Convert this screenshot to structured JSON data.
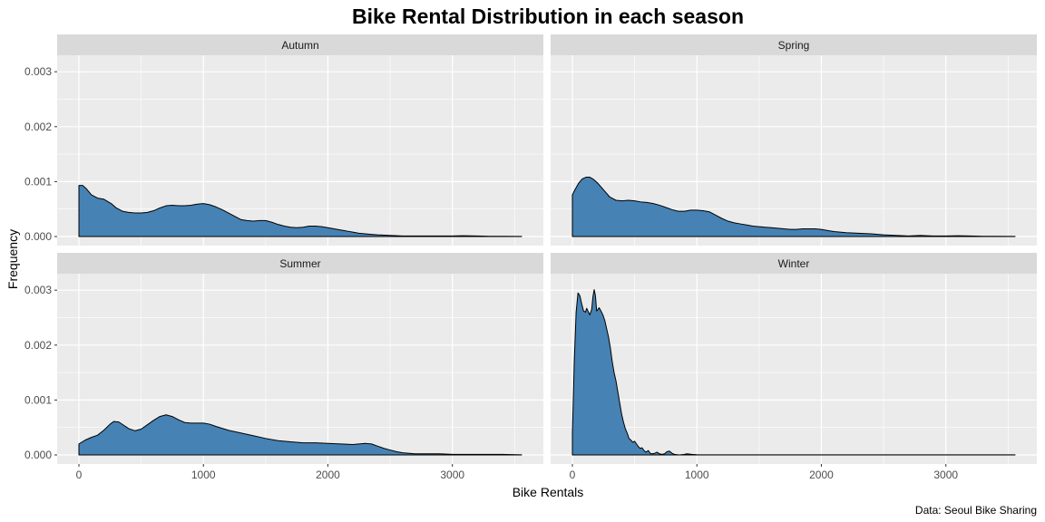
{
  "chart_data": {
    "type": "area",
    "title": "Bike Rental Distribution in each season",
    "xlabel": "Bike Rentals",
    "ylabel": "Frequency",
    "caption": "Data: Seoul Bike Sharing",
    "xlim": [
      0,
      3556
    ],
    "ylim": [
      0,
      0.0033
    ],
    "x_ticks": [
      0,
      1000,
      2000,
      3000
    ],
    "x_tick_labels": [
      "0",
      "1000",
      "2000",
      "3000"
    ],
    "y_ticks": [
      0,
      0.001,
      0.002,
      0.003
    ],
    "y_tick_labels": [
      "0.000",
      "0.001",
      "0.002",
      "0.003"
    ],
    "grid": true,
    "fill_color": "#4682B4",
    "panel_background": "#EBEBEB",
    "strip_background": "#D9D9D9",
    "series": [
      {
        "name": "Autumn",
        "points": [
          [
            0,
            0.00093
          ],
          [
            30,
            0.00093
          ],
          [
            60,
            0.00087
          ],
          [
            100,
            0.00076
          ],
          [
            150,
            0.0007
          ],
          [
            200,
            0.00068
          ],
          [
            260,
            0.0006
          ],
          [
            300,
            0.00052
          ],
          [
            350,
            0.00046
          ],
          [
            400,
            0.00044
          ],
          [
            450,
            0.00043
          ],
          [
            500,
            0.00043
          ],
          [
            550,
            0.00044
          ],
          [
            600,
            0.00047
          ],
          [
            650,
            0.00052
          ],
          [
            700,
            0.00056
          ],
          [
            750,
            0.00057
          ],
          [
            800,
            0.00056
          ],
          [
            850,
            0.00056
          ],
          [
            900,
            0.00057
          ],
          [
            950,
            0.00059
          ],
          [
            1000,
            0.0006
          ],
          [
            1050,
            0.00058
          ],
          [
            1100,
            0.00054
          ],
          [
            1150,
            0.00049
          ],
          [
            1200,
            0.00043
          ],
          [
            1250,
            0.00037
          ],
          [
            1300,
            0.00031
          ],
          [
            1350,
            0.00029
          ],
          [
            1400,
            0.00028
          ],
          [
            1450,
            0.00029
          ],
          [
            1500,
            0.00029
          ],
          [
            1550,
            0.00026
          ],
          [
            1600,
            0.00022
          ],
          [
            1650,
            0.00019
          ],
          [
            1700,
            0.00017
          ],
          [
            1750,
            0.00016
          ],
          [
            1800,
            0.00017
          ],
          [
            1850,
            0.00019
          ],
          [
            1900,
            0.00019
          ],
          [
            1950,
            0.00018
          ],
          [
            2000,
            0.00016
          ],
          [
            2050,
            0.00014
          ],
          [
            2100,
            0.00012
          ],
          [
            2150,
            0.0001
          ],
          [
            2200,
            8e-05
          ],
          [
            2250,
            6e-05
          ],
          [
            2300,
            5e-05
          ],
          [
            2350,
            4e-05
          ],
          [
            2400,
            3e-05
          ],
          [
            2500,
            2e-05
          ],
          [
            2600,
            1e-05
          ],
          [
            2700,
            1e-05
          ],
          [
            2800,
            1e-05
          ],
          [
            2900,
            1e-05
          ],
          [
            3000,
            1e-05
          ],
          [
            3100,
            1.5e-05
          ],
          [
            3200,
            1e-05
          ],
          [
            3300,
            5e-06
          ],
          [
            3400,
            5e-06
          ],
          [
            3556,
            2e-06
          ]
        ]
      },
      {
        "name": "Spring",
        "points": [
          [
            0,
            0.00076
          ],
          [
            20,
            0.00085
          ],
          [
            50,
            0.00097
          ],
          [
            80,
            0.00105
          ],
          [
            110,
            0.00108
          ],
          [
            140,
            0.00108
          ],
          [
            170,
            0.00104
          ],
          [
            200,
            0.00098
          ],
          [
            250,
            0.00085
          ],
          [
            300,
            0.00072
          ],
          [
            350,
            0.00066
          ],
          [
            400,
            0.00065
          ],
          [
            450,
            0.00066
          ],
          [
            500,
            0.00065
          ],
          [
            550,
            0.00063
          ],
          [
            600,
            0.00062
          ],
          [
            650,
            0.0006
          ],
          [
            700,
            0.00057
          ],
          [
            750,
            0.00053
          ],
          [
            800,
            0.00049
          ],
          [
            850,
            0.00046
          ],
          [
            900,
            0.00046
          ],
          [
            950,
            0.00048
          ],
          [
            1000,
            0.00048
          ],
          [
            1050,
            0.00047
          ],
          [
            1100,
            0.00045
          ],
          [
            1150,
            0.00039
          ],
          [
            1200,
            0.00033
          ],
          [
            1250,
            0.00028
          ],
          [
            1300,
            0.00025
          ],
          [
            1350,
            0.00023
          ],
          [
            1400,
            0.00021
          ],
          [
            1450,
            0.00019
          ],
          [
            1500,
            0.00018
          ],
          [
            1550,
            0.00017
          ],
          [
            1600,
            0.00016
          ],
          [
            1650,
            0.00015
          ],
          [
            1700,
            0.00014
          ],
          [
            1750,
            0.00013
          ],
          [
            1800,
            0.00013
          ],
          [
            1850,
            0.00014
          ],
          [
            1900,
            0.00014
          ],
          [
            1950,
            0.00014
          ],
          [
            2000,
            0.00013
          ],
          [
            2050,
            0.00011
          ],
          [
            2100,
            9e-05
          ],
          [
            2150,
            8e-05
          ],
          [
            2200,
            7e-05
          ],
          [
            2300,
            6e-05
          ],
          [
            2400,
            5e-05
          ],
          [
            2500,
            3e-05
          ],
          [
            2600,
            2e-05
          ],
          [
            2700,
            1e-05
          ],
          [
            2800,
            2e-05
          ],
          [
            2900,
            1e-05
          ],
          [
            3000,
            1e-05
          ],
          [
            3100,
            1.5e-05
          ],
          [
            3200,
            1e-05
          ],
          [
            3300,
            5e-06
          ],
          [
            3400,
            5e-06
          ],
          [
            3556,
            2e-06
          ]
        ]
      },
      {
        "name": "Summer",
        "points": [
          [
            0,
            0.0002
          ],
          [
            50,
            0.00027
          ],
          [
            100,
            0.00032
          ],
          [
            150,
            0.00036
          ],
          [
            200,
            0.00045
          ],
          [
            250,
            0.00056
          ],
          [
            280,
            0.00061
          ],
          [
            320,
            0.0006
          ],
          [
            360,
            0.00054
          ],
          [
            400,
            0.00048
          ],
          [
            450,
            0.00044
          ],
          [
            500,
            0.00047
          ],
          [
            550,
            0.00055
          ],
          [
            600,
            0.00063
          ],
          [
            650,
            0.0007
          ],
          [
            700,
            0.00073
          ],
          [
            750,
            0.0007
          ],
          [
            800,
            0.00064
          ],
          [
            850,
            0.00059
          ],
          [
            900,
            0.00058
          ],
          [
            950,
            0.00058
          ],
          [
            1000,
            0.00058
          ],
          [
            1050,
            0.00056
          ],
          [
            1100,
            0.00052
          ],
          [
            1200,
            0.00045
          ],
          [
            1300,
            0.0004
          ],
          [
            1400,
            0.00035
          ],
          [
            1500,
            0.0003
          ],
          [
            1600,
            0.00026
          ],
          [
            1700,
            0.00024
          ],
          [
            1800,
            0.00022
          ],
          [
            1900,
            0.00022
          ],
          [
            2000,
            0.00021
          ],
          [
            2100,
            0.0002
          ],
          [
            2200,
            0.00019
          ],
          [
            2300,
            0.00021
          ],
          [
            2350,
            0.0002
          ],
          [
            2400,
            0.00016
          ],
          [
            2450,
            0.00012
          ],
          [
            2500,
            9e-05
          ],
          [
            2550,
            6e-05
          ],
          [
            2600,
            4e-05
          ],
          [
            2700,
            2e-05
          ],
          [
            2800,
            2e-05
          ],
          [
            2900,
            2e-05
          ],
          [
            3000,
            1e-05
          ],
          [
            3200,
            1e-05
          ],
          [
            3400,
            1e-05
          ],
          [
            3556,
            2e-06
          ]
        ]
      },
      {
        "name": "Winter",
        "points": [
          [
            0,
            0.0004
          ],
          [
            15,
            0.0017
          ],
          [
            30,
            0.0026
          ],
          [
            45,
            0.00295
          ],
          [
            60,
            0.0029
          ],
          [
            75,
            0.00275
          ],
          [
            90,
            0.00262
          ],
          [
            105,
            0.0026
          ],
          [
            115,
            0.00267
          ],
          [
            125,
            0.00262
          ],
          [
            140,
            0.00255
          ],
          [
            155,
            0.00265
          ],
          [
            165,
            0.00288
          ],
          [
            175,
            0.00301
          ],
          [
            185,
            0.0029
          ],
          [
            195,
            0.00262
          ],
          [
            205,
            0.00265
          ],
          [
            215,
            0.00268
          ],
          [
            230,
            0.00262
          ],
          [
            245,
            0.00255
          ],
          [
            260,
            0.00245
          ],
          [
            275,
            0.0023
          ],
          [
            290,
            0.00215
          ],
          [
            305,
            0.00195
          ],
          [
            320,
            0.0017
          ],
          [
            335,
            0.0015
          ],
          [
            350,
            0.00135
          ],
          [
            365,
            0.00115
          ],
          [
            380,
            0.00095
          ],
          [
            395,
            0.00075
          ],
          [
            410,
            0.0006
          ],
          [
            425,
            0.00048
          ],
          [
            440,
            0.0004
          ],
          [
            455,
            0.0003
          ],
          [
            470,
            0.00027
          ],
          [
            485,
            0.00023
          ],
          [
            500,
            0.00025
          ],
          [
            515,
            0.0002
          ],
          [
            530,
            0.00015
          ],
          [
            545,
            0.00012
          ],
          [
            560,
            0.00013
          ],
          [
            575,
            8e-05
          ],
          [
            590,
            5e-05
          ],
          [
            610,
            8e-05
          ],
          [
            625,
            3e-05
          ],
          [
            640,
            2e-05
          ],
          [
            660,
            3e-05
          ],
          [
            680,
            5e-05
          ],
          [
            700,
            2e-05
          ],
          [
            720,
            1e-05
          ],
          [
            740,
            2e-05
          ],
          [
            760,
            6e-05
          ],
          [
            780,
            7e-05
          ],
          [
            800,
            3e-05
          ],
          [
            820,
            1e-05
          ],
          [
            860,
            0.0
          ],
          [
            900,
            1e-05
          ],
          [
            920,
            2e-05
          ],
          [
            960,
            1e-05
          ],
          [
            1000,
            5e-06
          ],
          [
            1200,
            2e-06
          ],
          [
            1500,
            2e-06
          ],
          [
            2000,
            2e-06
          ],
          [
            3000,
            2e-06
          ],
          [
            3556,
            2e-06
          ]
        ]
      }
    ]
  }
}
